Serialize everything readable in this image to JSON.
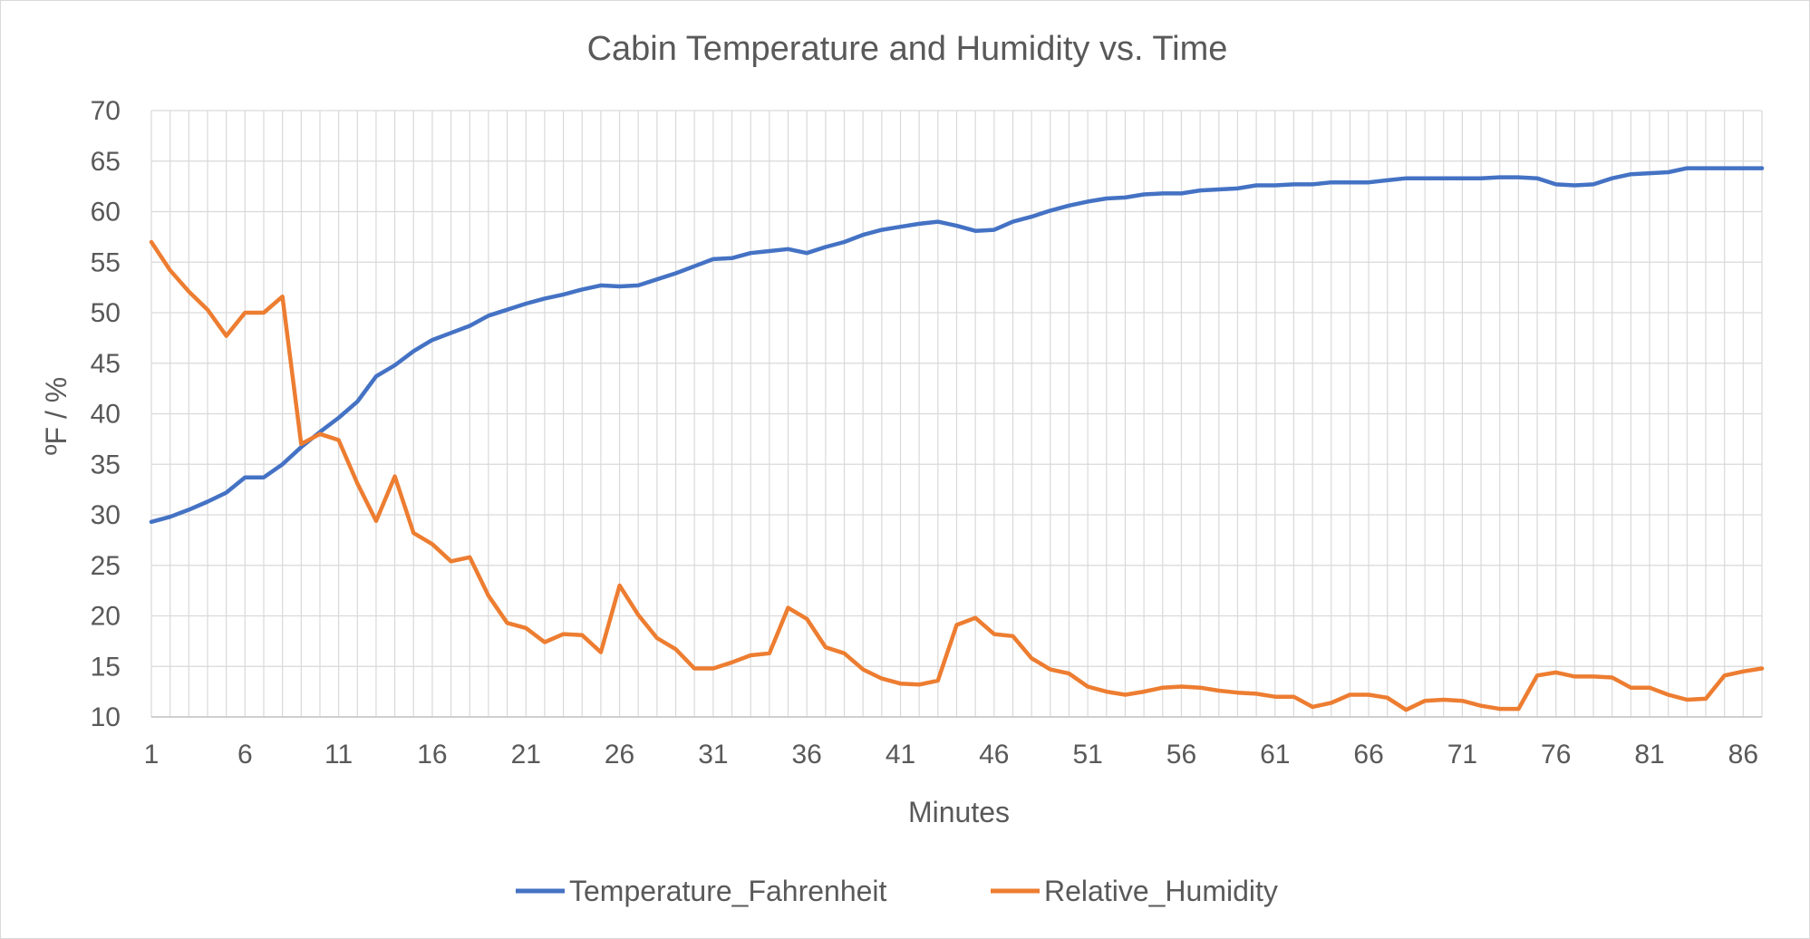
{
  "chart_data": {
    "type": "line",
    "title": "Cabin Temperature and Humidity vs. Time",
    "xlabel": "Minutes",
    "ylabel": "ºF / %",
    "ylim": [
      10,
      70
    ],
    "yticks": [
      10,
      15,
      20,
      25,
      30,
      35,
      40,
      45,
      50,
      55,
      60,
      65,
      70
    ],
    "xtick_labels": [
      "1",
      "6",
      "11",
      "16",
      "21",
      "26",
      "31",
      "36",
      "41",
      "46",
      "51",
      "56",
      "61",
      "66",
      "71",
      "76",
      "81",
      "86"
    ],
    "x": [
      1,
      2,
      3,
      4,
      5,
      6,
      7,
      8,
      9,
      10,
      11,
      12,
      13,
      14,
      15,
      16,
      17,
      18,
      19,
      20,
      21,
      22,
      23,
      24,
      25,
      26,
      27,
      28,
      29,
      30,
      31,
      32,
      33,
      34,
      35,
      36,
      37,
      38,
      39,
      40,
      41,
      42,
      43,
      44,
      45,
      46,
      47,
      48,
      49,
      50,
      51,
      52,
      53,
      54,
      55,
      56,
      57,
      58,
      59,
      60,
      61,
      62,
      63,
      64,
      65,
      66,
      67,
      68,
      69,
      70,
      71,
      72,
      73,
      74,
      75,
      76,
      77,
      78,
      79,
      80,
      81,
      82,
      83,
      84,
      85,
      86,
      87
    ],
    "grid": true,
    "legend_position": "bottom",
    "series": [
      {
        "name": "Temperature_Fahrenheit",
        "color": "#4472C4",
        "values": [
          29.3,
          29.8,
          30.5,
          31.3,
          32.2,
          33.7,
          33.7,
          35.0,
          36.7,
          38.2,
          39.6,
          41.2,
          43.7,
          44.8,
          46.2,
          47.3,
          48.0,
          48.7,
          49.7,
          50.3,
          50.9,
          51.4,
          51.8,
          52.3,
          52.7,
          52.6,
          52.7,
          53.3,
          53.9,
          54.6,
          55.3,
          55.4,
          55.9,
          56.1,
          56.3,
          55.9,
          56.5,
          57.0,
          57.7,
          58.2,
          58.5,
          58.8,
          59.0,
          58.6,
          58.1,
          58.2,
          59.0,
          59.5,
          60.1,
          60.6,
          61.0,
          61.3,
          61.4,
          61.7,
          61.8,
          61.8,
          62.1,
          62.2,
          62.3,
          62.6,
          62.6,
          62.7,
          62.7,
          62.9,
          62.9,
          62.9,
          63.1,
          63.3,
          63.3,
          63.3,
          63.3,
          63.3,
          63.4,
          63.4,
          63.3,
          62.7,
          62.6,
          62.7,
          63.3,
          63.7,
          63.8,
          63.9,
          64.3,
          64.3,
          64.3,
          64.3,
          64.3
        ]
      },
      {
        "name": "Relative_Humidity",
        "color": "#ED7D31",
        "values": [
          57.0,
          54.2,
          52.1,
          50.3,
          47.7,
          50.0,
          50.0,
          51.6,
          37.0,
          38.0,
          37.4,
          33.1,
          29.4,
          33.8,
          28.2,
          27.1,
          25.4,
          25.8,
          22.0,
          19.3,
          18.8,
          17.4,
          18.2,
          18.1,
          16.4,
          23.0,
          20.1,
          17.8,
          16.7,
          14.8,
          14.8,
          15.4,
          16.1,
          16.3,
          20.8,
          19.7,
          16.9,
          16.3,
          14.7,
          13.8,
          13.3,
          13.2,
          13.6,
          19.1,
          19.8,
          18.2,
          18.0,
          15.8,
          14.7,
          14.3,
          13.0,
          12.5,
          12.2,
          12.5,
          12.9,
          13.0,
          12.9,
          12.6,
          12.4,
          12.3,
          12.0,
          12.0,
          11.0,
          11.4,
          12.2,
          12.2,
          11.9,
          10.7,
          11.6,
          11.7,
          11.6,
          11.1,
          10.8,
          10.8,
          14.1,
          14.4,
          14.0,
          14.0,
          13.9,
          12.9,
          12.9,
          12.2,
          11.7,
          11.8,
          14.1,
          14.5,
          14.8
        ]
      }
    ]
  }
}
